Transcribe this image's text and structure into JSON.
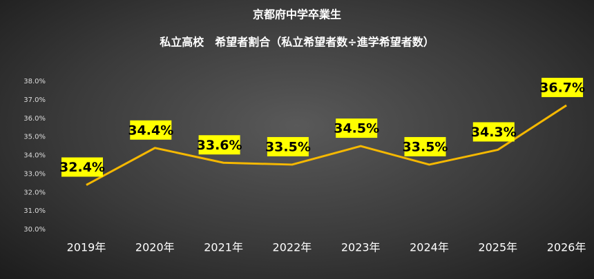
{
  "chart_data": {
    "type": "line",
    "title": "京都府中学卒業生",
    "subtitle": "私立高校　希望者割合（私立希望者数÷進学希望者数）",
    "categories": [
      "2019年",
      "2020年",
      "2021年",
      "2022年",
      "2023年",
      "2024年",
      "2025年",
      "2026年"
    ],
    "series": [
      {
        "name": "私立希望者割合",
        "color": "#f5b800",
        "values": [
          32.4,
          34.4,
          33.6,
          33.5,
          34.5,
          33.5,
          34.3,
          36.7
        ],
        "value_labels": [
          "32.4%",
          "34.4%",
          "33.6%",
          "33.5%",
          "34.5%",
          "33.5%",
          "34.3%",
          "36.7%"
        ]
      }
    ],
    "ylim": [
      30,
      38
    ],
    "yticks": [
      {
        "value": 30,
        "label": "30.0%"
      },
      {
        "value": 31,
        "label": "31.0%"
      },
      {
        "value": 32,
        "label": "32.0%"
      },
      {
        "value": 33,
        "label": "33.0%"
      },
      {
        "value": 34,
        "label": "34.0%"
      },
      {
        "value": 35,
        "label": "35.0%"
      },
      {
        "value": 36,
        "label": "36.0%"
      },
      {
        "value": 37,
        "label": "37.0%"
      },
      {
        "value": 38,
        "label": "38.0%"
      }
    ],
    "grid": false
  }
}
